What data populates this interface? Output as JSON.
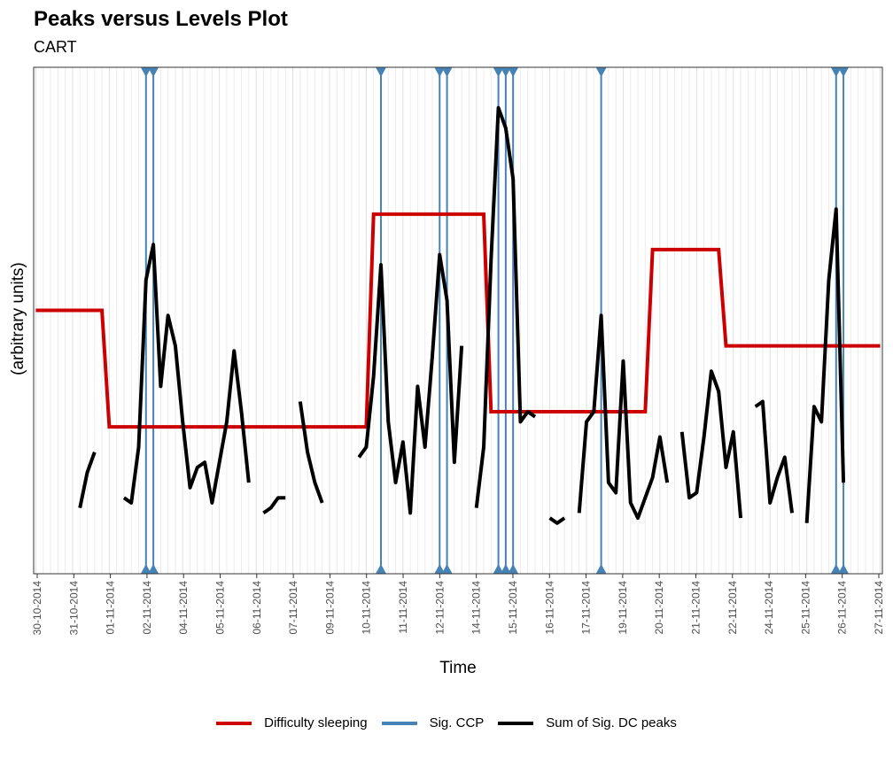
{
  "chart_data": {
    "type": "line",
    "title": "Peaks versus Levels Plot",
    "subtitle": "CART",
    "xlabel": "Time",
    "ylabel": "(arbitrary units)",
    "x_ticks": [
      "30-10-2014",
      "31-10-2014",
      "01-11-2014",
      "02-11-2014",
      "04-11-2014",
      "05-11-2014",
      "06-11-2014",
      "07-11-2014",
      "09-11-2014",
      "10-11-2014",
      "11-11-2014",
      "12-11-2014",
      "14-11-2014",
      "15-11-2014",
      "16-11-2014",
      "17-11-2014",
      "19-11-2014",
      "20-11-2014",
      "21-11-2014",
      "22-11-2014",
      "24-11-2014",
      "25-11-2014",
      "26-11-2014",
      "27-11-2014"
    ],
    "y_axis_ticks_shown": false,
    "ylim": [
      0,
      100
    ],
    "grid": true,
    "legend_position": "bottom",
    "series": [
      {
        "name": "Difficulty sleeping",
        "color": "#cc0000",
        "points": [
          [
            0,
            52
          ],
          [
            9,
            52
          ],
          [
            10,
            29
          ],
          [
            45,
            29
          ],
          [
            46,
            71
          ],
          [
            61,
            71
          ],
          [
            62,
            32
          ],
          [
            83,
            32
          ],
          [
            84,
            64
          ],
          [
            93,
            64
          ],
          [
            94,
            45
          ],
          [
            115,
            45
          ]
        ]
      },
      {
        "name": "Sum of Sig. DC peaks",
        "color": "#000000",
        "segments": [
          [
            [
              6,
              13
            ],
            [
              7,
              20
            ],
            [
              8,
              24
            ]
          ],
          [
            [
              12,
              15
            ],
            [
              13,
              14
            ],
            [
              14,
              25
            ],
            [
              15,
              58
            ],
            [
              16,
              65
            ],
            [
              17,
              37
            ],
            [
              18,
              51
            ],
            [
              19,
              45
            ],
            [
              20,
              30
            ],
            [
              21,
              17
            ],
            [
              22,
              21
            ],
            [
              23,
              22
            ],
            [
              24,
              14
            ],
            [
              25,
              22
            ],
            [
              26,
              30
            ],
            [
              27,
              44
            ],
            [
              28,
              32
            ],
            [
              29,
              18
            ]
          ],
          [
            [
              31,
              12
            ],
            [
              32,
              13
            ],
            [
              33,
              15
            ],
            [
              34,
              15
            ]
          ],
          [
            [
              36,
              34
            ],
            [
              37,
              24
            ],
            [
              38,
              18
            ],
            [
              39,
              14
            ]
          ],
          [
            [
              44,
              23
            ],
            [
              45,
              25
            ],
            [
              46,
              39
            ],
            [
              47,
              61
            ],
            [
              48,
              30
            ],
            [
              49,
              18
            ],
            [
              50,
              26
            ],
            [
              51,
              12
            ],
            [
              52,
              37
            ],
            [
              53,
              25
            ],
            [
              54,
              43
            ],
            [
              55,
              63
            ],
            [
              56,
              54
            ],
            [
              57,
              22
            ],
            [
              58,
              45
            ]
          ],
          [
            [
              60,
              13
            ],
            [
              61,
              25
            ],
            [
              62,
              62
            ],
            [
              63,
              92
            ],
            [
              64,
              88
            ],
            [
              65,
              78
            ],
            [
              66,
              30
            ],
            [
              67,
              32
            ],
            [
              68,
              31
            ]
          ],
          [
            [
              70,
              11
            ],
            [
              71,
              10
            ],
            [
              72,
              11
            ]
          ],
          [
            [
              74,
              12
            ],
            [
              75,
              30
            ],
            [
              76,
              32
            ],
            [
              77,
              51
            ],
            [
              78,
              18
            ],
            [
              79,
              16
            ],
            [
              80,
              42
            ],
            [
              81,
              14
            ],
            [
              82,
              11
            ],
            [
              83,
              15
            ],
            [
              84,
              19
            ],
            [
              85,
              27
            ],
            [
              86,
              18
            ]
          ],
          [
            [
              88,
              28
            ],
            [
              89,
              15
            ],
            [
              90,
              16
            ],
            [
              91,
              27
            ],
            [
              92,
              40
            ],
            [
              93,
              36
            ],
            [
              94,
              21
            ],
            [
              95,
              28
            ],
            [
              96,
              11
            ]
          ],
          [
            [
              98,
              33
            ],
            [
              99,
              34
            ],
            [
              100,
              14
            ],
            [
              101,
              19
            ],
            [
              102,
              23
            ],
            [
              103,
              12
            ]
          ],
          [
            [
              105,
              10
            ],
            [
              106,
              33
            ],
            [
              107,
              30
            ],
            [
              108,
              58
            ],
            [
              109,
              72
            ],
            [
              110,
              18
            ]
          ]
        ]
      },
      {
        "name": "Sig. CCP",
        "color": "#4682b4",
        "vlines": [
          15,
          16,
          47,
          55,
          56,
          63,
          64,
          65,
          77,
          109,
          110
        ]
      }
    ],
    "x_range": [
      -0.3,
      115.3
    ]
  }
}
